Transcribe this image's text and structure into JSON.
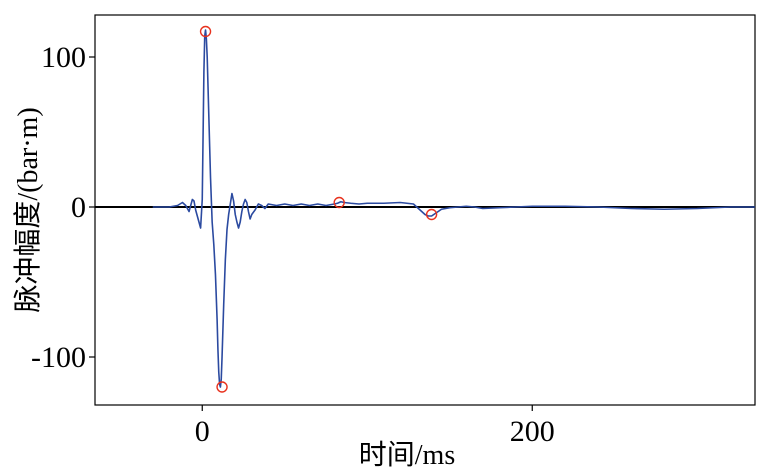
{
  "chart_data": {
    "type": "line",
    "xlabel": "时间/ms",
    "ylabel": "脉冲幅度/(bar·m)",
    "xlim": [
      -65,
      335
    ],
    "ylim": [
      -132,
      128
    ],
    "x_ticks": [
      0,
      200
    ],
    "x_tick_labels": [
      "0",
      "200"
    ],
    "y_ticks": [
      100,
      0,
      -100
    ],
    "y_tick_labels": [
      "100",
      "0",
      "-100"
    ],
    "grid": false,
    "legend": "none",
    "zero_line": true,
    "colors": {
      "line": "#2b4aa0",
      "markers": "#e8321e",
      "zero_line": "#000000",
      "frame": "#000000"
    },
    "series": [
      {
        "x": [
          -30,
          -20,
          -15,
          -12,
          -10,
          -8,
          -6,
          -5,
          -4,
          -2,
          -1,
          0,
          1,
          1.5,
          2,
          2.5,
          3,
          3.5,
          4,
          4.5,
          5,
          5.5,
          6,
          7,
          8,
          9,
          9.5,
          10,
          10.5,
          11,
          11.5,
          12,
          13,
          14,
          15,
          16,
          17,
          18,
          19,
          20,
          21,
          22,
          23,
          24,
          25,
          26,
          27,
          28,
          29,
          30,
          32,
          34,
          36,
          38,
          40,
          45,
          50,
          55,
          60,
          65,
          70,
          75,
          80,
          82,
          84,
          86,
          90,
          95,
          100,
          110,
          120,
          128,
          132,
          135,
          137,
          139,
          141,
          143,
          145,
          150,
          155,
          160,
          165,
          170,
          180,
          190,
          200,
          220,
          240,
          260,
          280,
          300,
          320,
          335
        ],
        "values": [
          0,
          0,
          1,
          3,
          1,
          -3,
          5,
          4,
          -2,
          -10,
          -14,
          5,
          90,
          114,
          118,
          112,
          100,
          80,
          60,
          40,
          20,
          5,
          -10,
          -25,
          -45,
          -75,
          -95,
          -110,
          -118,
          -120,
          -115,
          -100,
          -65,
          -35,
          -15,
          -5,
          2,
          9,
          4,
          -5,
          -10,
          -14,
          -10,
          -3,
          2,
          5,
          3,
          -3,
          -8,
          -5,
          -2,
          2,
          1,
          -1,
          2,
          1,
          2,
          1,
          2,
          1,
          2,
          1,
          2,
          2.5,
          3.5,
          3,
          2.5,
          2,
          2.5,
          2.5,
          3,
          2,
          -2,
          -5,
          -6,
          -6,
          -4.5,
          -3,
          -1.5,
          -0.5,
          0,
          0.5,
          0,
          -1,
          -0.5,
          0,
          0.5,
          0.5,
          0,
          -1,
          -1.5,
          -1,
          0,
          0
        ]
      }
    ],
    "marker_points": [
      {
        "x": 2,
        "y": 117
      },
      {
        "x": 12,
        "y": -120
      },
      {
        "x": 83,
        "y": 3
      },
      {
        "x": 139,
        "y": -5
      }
    ]
  }
}
